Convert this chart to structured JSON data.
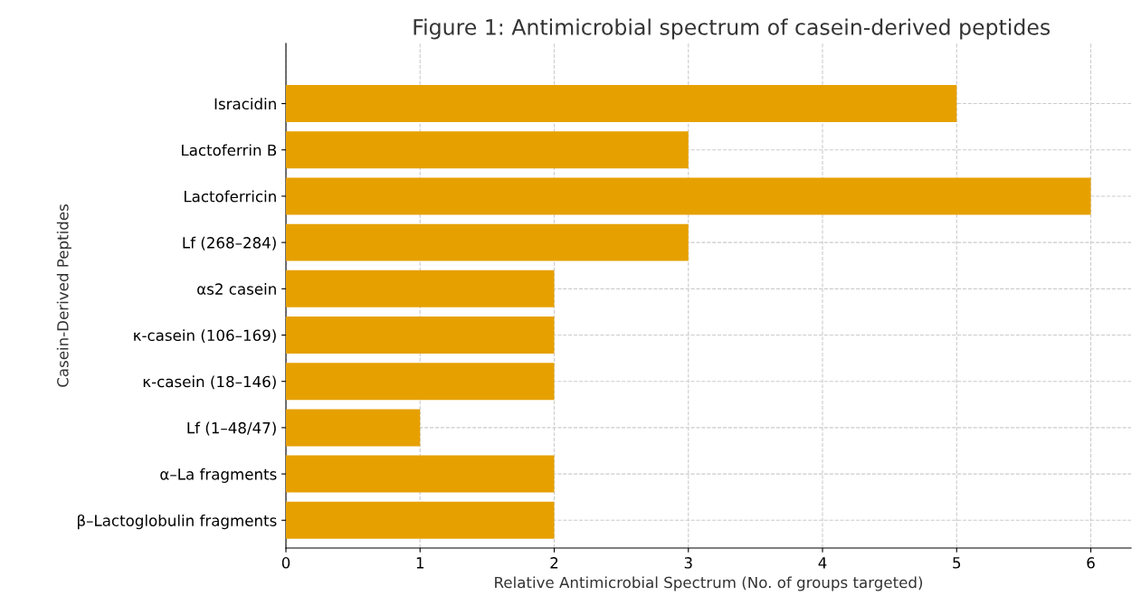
{
  "chart_data": {
    "type": "bar",
    "orientation": "horizontal",
    "title": "Figure 1: Antimicrobial spectrum of casein-derived peptides",
    "xlabel": "Relative Antimicrobial Spectrum (No. of groups targeted)",
    "ylabel": "Casein-Derived Peptides",
    "categories": [
      "Isracidin",
      "Lactoferrin B",
      "Lactoferricin",
      "Lf (268–284)",
      "αs2 casein",
      "κ-casein (106–169)",
      "κ-casein (18–146)",
      "Lf (1–48/47)",
      "α–La fragments",
      "β–Lactoglobulin fragments"
    ],
    "values": [
      5,
      3,
      6,
      3,
      2,
      2,
      2,
      1,
      2,
      2
    ],
    "color": "#e6a000",
    "xlim": [
      0,
      6.3
    ],
    "xticks": [
      0,
      1,
      2,
      3,
      4,
      5,
      6
    ],
    "grid": true
  }
}
